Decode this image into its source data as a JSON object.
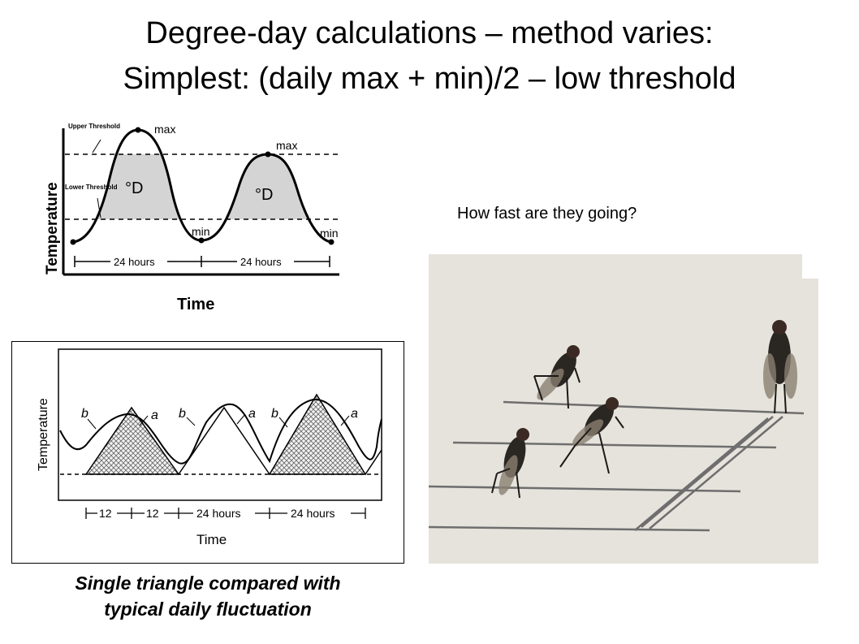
{
  "slide": {
    "title_line1": "Degree-day calculations – method varies:",
    "title_line2": "Simplest: (daily max + min)/2 – low threshold",
    "question": "How fast are they going?",
    "caption_line1": "Single triangle compared with",
    "caption_line2": "typical daily fluctuation"
  },
  "fig1": {
    "ylabel": "Temperature",
    "xlabel": "Time",
    "upper_threshold": "Upper Threshold",
    "lower_threshold": "Lower Threshold",
    "max_label": "max",
    "min_label": "min",
    "degree_label": "°D",
    "period_label": "24 hours"
  },
  "fig2": {
    "ylabel": "Temperature",
    "xlabel": "Time",
    "label_a": "a",
    "label_b": "b",
    "period_12": "12",
    "period_24": "24 hours"
  },
  "colors": {
    "shade": "#d4d4d4",
    "photo_bg": "#e6e3dc",
    "fly": "#2a2622",
    "wing": "#8a7f70"
  }
}
